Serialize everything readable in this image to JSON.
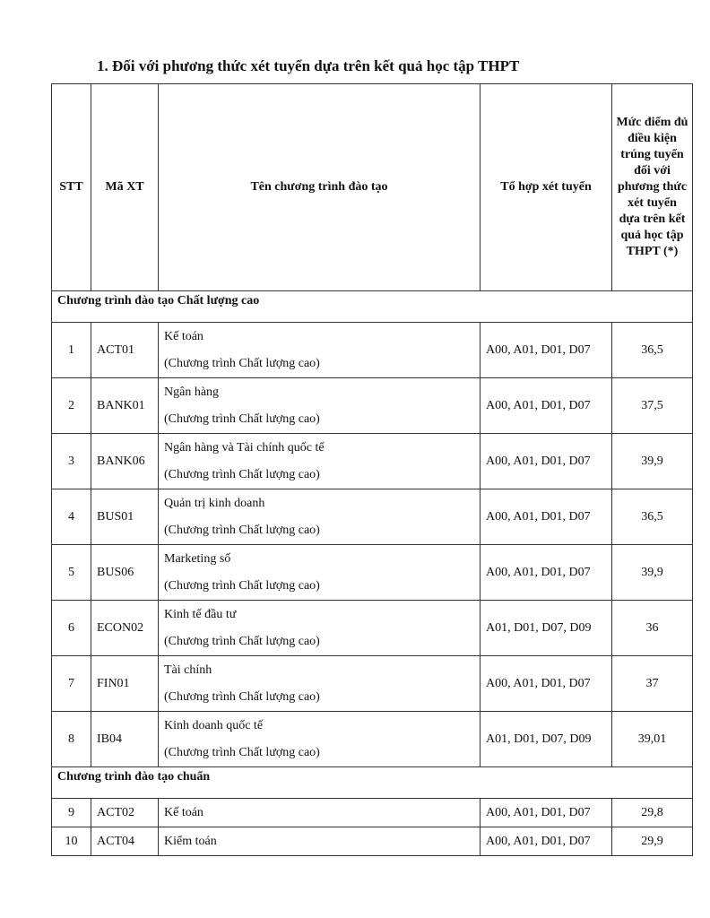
{
  "heading": "1. Đối với phương thức xét tuyển dựa trên kết quả học tập THPT",
  "table": {
    "headers": [
      "STT",
      "Mã XT",
      "Tên chương trình đào tạo",
      "Tổ hợp xét tuyển",
      "Mức điểm đủ điều kiện trúng tuyển đối với phương thức xét tuyển dựa trên kết quả học tập THPT (*)"
    ],
    "sections": [
      {
        "title": "Chương trình đào tạo Chất lượng cao",
        "rows": [
          {
            "stt": "1",
            "code": "ACT01",
            "name": "Kế toán",
            "note": "(Chương trình Chất lượng cao)",
            "combo": "A00, A01, D01, D07",
            "score": "36,5"
          },
          {
            "stt": "2",
            "code": "BANK01",
            "name": "Ngân hàng",
            "note": "(Chương trình Chất lượng cao)",
            "combo": "A00, A01, D01, D07",
            "score": "37,5"
          },
          {
            "stt": "3",
            "code": "BANK06",
            "name": "Ngân hàng và Tài chính quốc tế",
            "note": "(Chương trình Chất lượng cao)",
            "combo": "A00, A01, D01, D07",
            "score": "39,9"
          },
          {
            "stt": "4",
            "code": "BUS01",
            "name": "Quản trị kinh doanh",
            "note": "(Chương trình Chất lượng cao)",
            "combo": "A00, A01, D01, D07",
            "score": "36,5"
          },
          {
            "stt": "5",
            "code": "BUS06",
            "name": "Marketing số",
            "note": "(Chương trình Chất lượng cao)",
            "combo": "A00, A01, D01, D07",
            "score": "39,9"
          },
          {
            "stt": "6",
            "code": "ECON02",
            "name": "Kinh tế đầu tư",
            "note": "(Chương trình Chất lượng cao)",
            "combo": "A01, D01, D07, D09",
            "score": "36"
          },
          {
            "stt": "7",
            "code": "FIN01",
            "name": "Tài chính",
            "note": "(Chương trình Chất lượng cao)",
            "combo": "A00, A01, D01, D07",
            "score": "37"
          },
          {
            "stt": "8",
            "code": "IB04",
            "name": "Kinh doanh quốc tế",
            "note": "(Chương trình Chất lượng cao)",
            "combo": "A01, D01, D07, D09",
            "score": "39,01"
          }
        ]
      },
      {
        "title": "Chương trình đào tạo chuẩn",
        "rows": [
          {
            "stt": "9",
            "code": "ACT02",
            "name": "Kế toán",
            "combo": "A00, A01, D01, D07",
            "score": "29,8"
          },
          {
            "stt": "10",
            "code": "ACT04",
            "name": "Kiểm toán",
            "combo": "A00, A01, D01, D07",
            "score": "29,9"
          }
        ]
      }
    ]
  }
}
